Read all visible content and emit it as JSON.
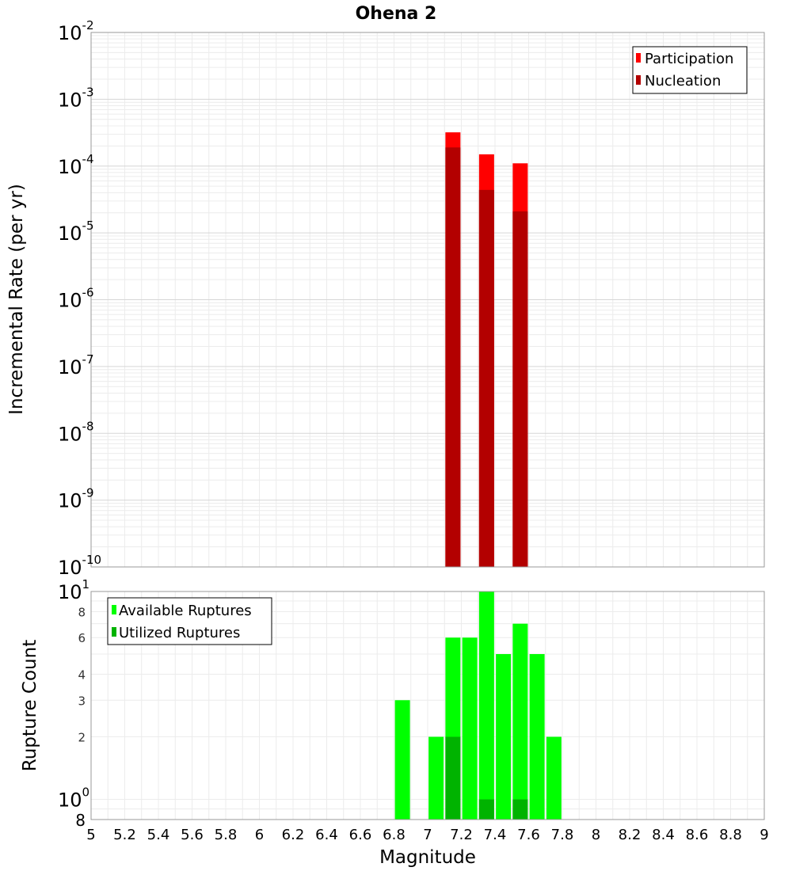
{
  "chart_data": [
    {
      "type": "bar",
      "title": "Ohena 2",
      "xlabel": "Magnitude",
      "ylabel": "Incremental Rate (per yr)",
      "yscale": "log",
      "xlim": [
        5,
        9
      ],
      "ylim": [
        1e-10,
        0.01
      ],
      "y_decades": [
        {
          "base": "10",
          "exp": "-10"
        },
        {
          "base": "10",
          "exp": "-9"
        },
        {
          "base": "10",
          "exp": "-8"
        },
        {
          "base": "10",
          "exp": "-7"
        },
        {
          "base": "10",
          "exp": "-6"
        },
        {
          "base": "10",
          "exp": "-5"
        },
        {
          "base": "10",
          "exp": "-4"
        },
        {
          "base": "10",
          "exp": "-3"
        },
        {
          "base": "10",
          "exp": "-2"
        }
      ],
      "grid": true,
      "legend_position": "top-right",
      "series": [
        {
          "name": "Participation",
          "color": "#ff0000",
          "x": [
            7.15,
            7.35,
            7.55
          ],
          "values": [
            0.00032,
            0.00015,
            0.00011
          ]
        },
        {
          "name": "Nucleation",
          "color": "#b30000",
          "x": [
            7.15,
            7.35,
            7.55
          ],
          "values": [
            0.00019,
            4.4e-05,
            2.1e-05
          ]
        }
      ]
    },
    {
      "type": "bar",
      "xlabel": "Magnitude",
      "ylabel": "Rupture Count",
      "yscale": "log",
      "xlim": [
        5,
        9
      ],
      "ylim": [
        0.8,
        10
      ],
      "x_ticks": [
        "5",
        "5.2",
        "5.4",
        "5.6",
        "5.8",
        "6",
        "6.2",
        "6.4",
        "6.6",
        "6.8",
        "7",
        "7.2",
        "7.4",
        "7.6",
        "7.8",
        "8",
        "8.2",
        "8.4",
        "8.6",
        "8.8",
        "9"
      ],
      "y_decades": [
        {
          "base": "10",
          "exp": "0"
        },
        {
          "base": "10",
          "exp": "1"
        }
      ],
      "y_minor_labels": [
        "8",
        "2",
        "3",
        "4",
        "6",
        "8"
      ],
      "grid": true,
      "legend_position": "top-left",
      "series": [
        {
          "name": "Available Ruptures",
          "color": "#00ff00",
          "x": [
            6.85,
            7.05,
            7.15,
            7.25,
            7.35,
            7.45,
            7.55,
            7.65,
            7.75
          ],
          "values": [
            3,
            2,
            6,
            6,
            10,
            5,
            7,
            5,
            2
          ]
        },
        {
          "name": "Utilized Ruptures",
          "color": "#00b300",
          "x": [
            7.15,
            7.35,
            7.55
          ],
          "values": [
            2,
            1,
            1
          ]
        }
      ]
    }
  ]
}
